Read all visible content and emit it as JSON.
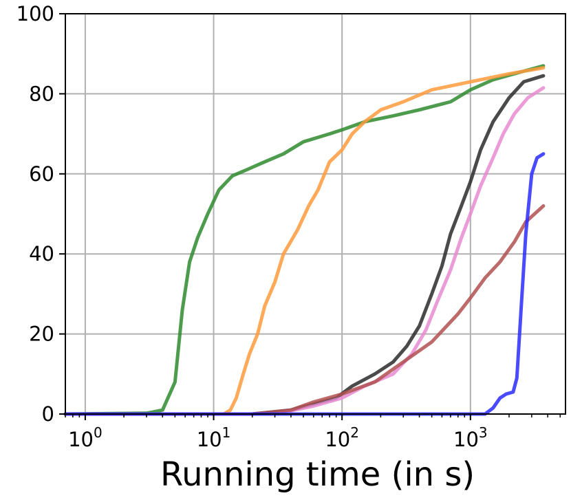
{
  "chart_data": {
    "type": "line",
    "title": "",
    "xlabel": "Running time (in s)",
    "ylabel": "",
    "x_scale": "log",
    "xlim": [
      0.7,
      5500
    ],
    "ylim": [
      0,
      100
    ],
    "grid": true,
    "legend": "none",
    "x_ticks": [
      {
        "value": 1,
        "base": "10",
        "exp": "0"
      },
      {
        "value": 10,
        "base": "10",
        "exp": "1"
      },
      {
        "value": 100,
        "base": "10",
        "exp": "2"
      },
      {
        "value": 1000,
        "base": "10",
        "exp": "3"
      }
    ],
    "y_ticks": [
      {
        "value": 0,
        "label": "0"
      },
      {
        "value": 20,
        "label": "20"
      },
      {
        "value": 40,
        "label": "40"
      },
      {
        "value": 60,
        "label": "60"
      },
      {
        "value": 80,
        "label": "80"
      },
      {
        "value": 100,
        "label": "100"
      }
    ],
    "series": [
      {
        "color": "#2e8b2e",
        "opacity": 0.85,
        "points": [
          [
            0.7,
            0
          ],
          [
            3,
            0.2
          ],
          [
            4,
            1
          ],
          [
            5,
            8
          ],
          [
            5.7,
            26
          ],
          [
            6.5,
            38
          ],
          [
            7.5,
            44
          ],
          [
            9,
            50
          ],
          [
            11,
            56
          ],
          [
            14,
            59.5
          ],
          [
            18,
            61
          ],
          [
            25,
            63
          ],
          [
            35,
            65
          ],
          [
            50,
            68
          ],
          [
            80,
            70
          ],
          [
            100,
            71
          ],
          [
            150,
            73
          ],
          [
            250,
            74.5
          ],
          [
            400,
            76
          ],
          [
            700,
            78
          ],
          [
            1000,
            81
          ],
          [
            1500,
            83.5
          ],
          [
            2500,
            85.5
          ],
          [
            3700,
            87
          ]
        ]
      },
      {
        "color": "#ff9a3c",
        "opacity": 0.85,
        "points": [
          [
            0.7,
            0
          ],
          [
            12,
            0
          ],
          [
            13.5,
            1
          ],
          [
            15,
            4
          ],
          [
            17,
            10
          ],
          [
            19,
            15
          ],
          [
            22,
            20
          ],
          [
            25,
            27
          ],
          [
            30,
            33
          ],
          [
            35,
            40
          ],
          [
            45,
            46
          ],
          [
            55,
            52
          ],
          [
            65,
            56
          ],
          [
            80,
            63
          ],
          [
            100,
            66
          ],
          [
            120,
            70
          ],
          [
            150,
            73
          ],
          [
            200,
            76
          ],
          [
            300,
            78
          ],
          [
            500,
            81
          ],
          [
            1000,
            83
          ],
          [
            2000,
            85
          ],
          [
            3700,
            86.5
          ]
        ]
      },
      {
        "color": "#2a2a2a",
        "opacity": 0.85,
        "points": [
          [
            0.7,
            0
          ],
          [
            20,
            0
          ],
          [
            40,
            1
          ],
          [
            60,
            2.5
          ],
          [
            90,
            4
          ],
          [
            120,
            7
          ],
          [
            180,
            10
          ],
          [
            250,
            13
          ],
          [
            320,
            17
          ],
          [
            400,
            22
          ],
          [
            500,
            30
          ],
          [
            600,
            37
          ],
          [
            700,
            45
          ],
          [
            850,
            52
          ],
          [
            1000,
            58
          ],
          [
            1200,
            66
          ],
          [
            1500,
            73
          ],
          [
            2000,
            79
          ],
          [
            2600,
            83
          ],
          [
            3700,
            84.5
          ]
        ]
      },
      {
        "color": "#e88ad0",
        "opacity": 0.85,
        "points": [
          [
            0.7,
            0
          ],
          [
            30,
            0
          ],
          [
            60,
            2
          ],
          [
            100,
            4
          ],
          [
            150,
            7
          ],
          [
            250,
            10
          ],
          [
            350,
            15
          ],
          [
            450,
            21
          ],
          [
            550,
            28
          ],
          [
            700,
            36
          ],
          [
            850,
            44
          ],
          [
            1000,
            50
          ],
          [
            1200,
            57
          ],
          [
            1500,
            64
          ],
          [
            1800,
            70
          ],
          [
            2200,
            75
          ],
          [
            2800,
            79
          ],
          [
            3700,
            81.5
          ]
        ]
      },
      {
        "color": "#b05050",
        "opacity": 0.85,
        "points": [
          [
            0.7,
            0
          ],
          [
            20,
            0
          ],
          [
            40,
            1
          ],
          [
            60,
            3
          ],
          [
            100,
            5
          ],
          [
            180,
            8
          ],
          [
            300,
            13
          ],
          [
            500,
            18
          ],
          [
            800,
            25
          ],
          [
            1000,
            29
          ],
          [
            1300,
            34
          ],
          [
            1700,
            38
          ],
          [
            2200,
            43
          ],
          [
            2700,
            48
          ],
          [
            3700,
            52
          ]
        ]
      },
      {
        "color": "#2a2aff",
        "opacity": 0.85,
        "points": [
          [
            0.7,
            0
          ],
          [
            1300,
            0
          ],
          [
            1500,
            1.5
          ],
          [
            1700,
            4
          ],
          [
            1900,
            5
          ],
          [
            2150,
            5.5
          ],
          [
            2300,
            9
          ],
          [
            2500,
            28
          ],
          [
            2700,
            45
          ],
          [
            3000,
            60
          ],
          [
            3300,
            64
          ],
          [
            3700,
            65
          ]
        ]
      }
    ]
  }
}
